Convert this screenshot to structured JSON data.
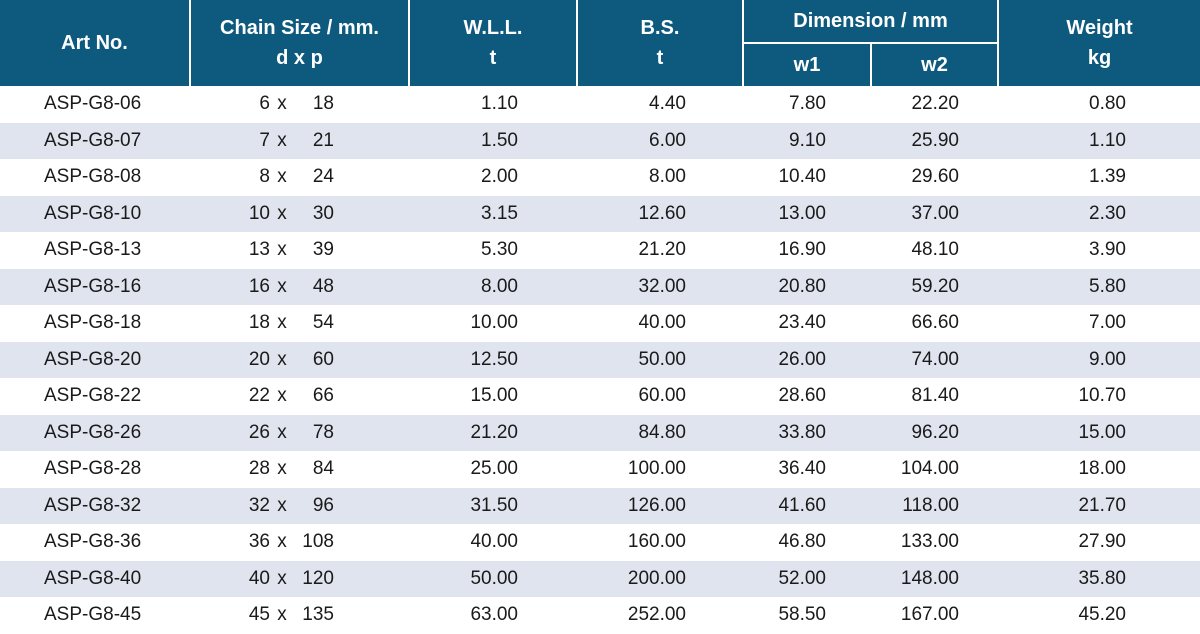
{
  "header": {
    "art_no": "Art No.",
    "chain_size": "Chain Size / mm.",
    "chain_size_sub": "d x p",
    "wll": "W.L.L.",
    "wll_unit": "t",
    "bs": "B.S.",
    "bs_unit": "t",
    "dimension": "Dimension / mm",
    "w1": "w1",
    "w2": "w2",
    "weight": "Weight",
    "weight_unit": "kg"
  },
  "colors": {
    "header_bg": "#0e5a7e",
    "stripe_bg": "#dfe4ee"
  },
  "rows": [
    {
      "art": "ASP-G8-06",
      "d": "6",
      "p": "18",
      "wll": "1.10",
      "bs": "4.40",
      "w1": "7.80",
      "w2": "22.20",
      "weight": "0.80"
    },
    {
      "art": "ASP-G8-07",
      "d": "7",
      "p": "21",
      "wll": "1.50",
      "bs": "6.00",
      "w1": "9.10",
      "w2": "25.90",
      "weight": "1.10"
    },
    {
      "art": "ASP-G8-08",
      "d": "8",
      "p": "24",
      "wll": "2.00",
      "bs": "8.00",
      "w1": "10.40",
      "w2": "29.60",
      "weight": "1.39"
    },
    {
      "art": "ASP-G8-10",
      "d": "10",
      "p": "30",
      "wll": "3.15",
      "bs": "12.60",
      "w1": "13.00",
      "w2": "37.00",
      "weight": "2.30"
    },
    {
      "art": "ASP-G8-13",
      "d": "13",
      "p": "39",
      "wll": "5.30",
      "bs": "21.20",
      "w1": "16.90",
      "w2": "48.10",
      "weight": "3.90"
    },
    {
      "art": "ASP-G8-16",
      "d": "16",
      "p": "48",
      "wll": "8.00",
      "bs": "32.00",
      "w1": "20.80",
      "w2": "59.20",
      "weight": "5.80"
    },
    {
      "art": "ASP-G8-18",
      "d": "18",
      "p": "54",
      "wll": "10.00",
      "bs": "40.00",
      "w1": "23.40",
      "w2": "66.60",
      "weight": "7.00"
    },
    {
      "art": "ASP-G8-20",
      "d": "20",
      "p": "60",
      "wll": "12.50",
      "bs": "50.00",
      "w1": "26.00",
      "w2": "74.00",
      "weight": "9.00"
    },
    {
      "art": "ASP-G8-22",
      "d": "22",
      "p": "66",
      "wll": "15.00",
      "bs": "60.00",
      "w1": "28.60",
      "w2": "81.40",
      "weight": "10.70"
    },
    {
      "art": "ASP-G8-26",
      "d": "26",
      "p": "78",
      "wll": "21.20",
      "bs": "84.80",
      "w1": "33.80",
      "w2": "96.20",
      "weight": "15.00"
    },
    {
      "art": "ASP-G8-28",
      "d": "28",
      "p": "84",
      "wll": "25.00",
      "bs": "100.00",
      "w1": "36.40",
      "w2": "104.00",
      "weight": "18.00"
    },
    {
      "art": "ASP-G8-32",
      "d": "32",
      "p": "96",
      "wll": "31.50",
      "bs": "126.00",
      "w1": "41.60",
      "w2": "118.00",
      "weight": "21.70"
    },
    {
      "art": "ASP-G8-36",
      "d": "36",
      "p": "108",
      "wll": "40.00",
      "bs": "160.00",
      "w1": "46.80",
      "w2": "133.00",
      "weight": "27.90"
    },
    {
      "art": "ASP-G8-40",
      "d": "40",
      "p": "120",
      "wll": "50.00",
      "bs": "200.00",
      "w1": "52.00",
      "w2": "148.00",
      "weight": "35.80"
    },
    {
      "art": "ASP-G8-45",
      "d": "45",
      "p": "135",
      "wll": "63.00",
      "bs": "252.00",
      "w1": "58.50",
      "w2": "167.00",
      "weight": "45.20"
    }
  ]
}
